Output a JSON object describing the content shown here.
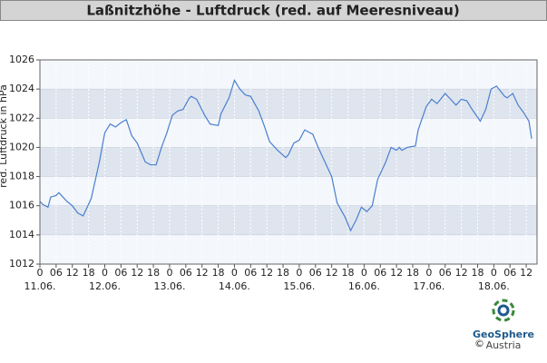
{
  "chart_data": {
    "type": "line",
    "title": "Laßnitzhöhe - Luftdruck (red. auf Meeresniveau)",
    "y_label": "red. Luftdruck in hPa",
    "x": [
      0,
      1,
      3,
      4,
      6,
      7,
      9,
      10,
      12,
      14,
      16,
      19,
      22,
      24,
      26,
      28,
      30,
      32,
      34,
      36,
      39,
      41,
      43,
      45,
      47,
      49,
      51,
      53,
      55,
      56,
      58,
      61,
      63,
      66,
      67,
      70,
      72,
      74,
      76,
      78,
      81,
      83,
      85,
      88,
      91,
      92,
      94,
      96,
      98,
      100,
      101,
      103,
      106,
      108,
      110,
      113,
      115,
      117,
      119,
      121,
      123,
      125,
      128,
      130,
      132,
      133,
      134,
      136,
      139,
      140,
      143,
      145,
      147,
      150,
      152,
      154,
      156,
      158,
      160,
      163,
      165,
      167,
      169,
      172,
      173,
      175,
      177,
      179,
      181,
      182
    ],
    "values": [
      1016.3,
      1016.1,
      1015.9,
      1016.6,
      1016.7,
      1016.9,
      1016.5,
      1016.3,
      1016.0,
      1015.5,
      1015.3,
      1016.5,
      1019.0,
      1021.0,
      1021.6,
      1021.4,
      1021.7,
      1021.9,
      1020.8,
      1020.3,
      1019.0,
      1018.8,
      1018.8,
      1020.0,
      1021.0,
      1022.2,
      1022.5,
      1022.6,
      1023.3,
      1023.5,
      1023.3,
      1022.2,
      1021.6,
      1021.5,
      1022.3,
      1023.4,
      1024.6,
      1024.0,
      1023.6,
      1023.5,
      1022.5,
      1021.5,
      1020.4,
      1019.8,
      1019.3,
      1019.5,
      1020.3,
      1020.5,
      1021.2,
      1021.0,
      1020.9,
      1020.0,
      1018.8,
      1018.0,
      1016.2,
      1015.2,
      1014.3,
      1015.0,
      1015.9,
      1015.6,
      1016.0,
      1017.8,
      1019.0,
      1020.0,
      1019.8,
      1020.0,
      1019.8,
      1020.0,
      1020.1,
      1021.2,
      1022.8,
      1023.3,
      1023.0,
      1023.7,
      1023.3,
      1022.9,
      1023.3,
      1023.2,
      1022.6,
      1021.8,
      1022.6,
      1024.0,
      1024.2,
      1023.5,
      1023.4,
      1023.7,
      1022.9,
      1022.4,
      1021.8,
      1020.6
    ],
    "color": "#4a7fd0",
    "xlim": [
      0,
      184
    ],
    "ylim": [
      1012,
      1026
    ],
    "yticks": [
      1012,
      1014,
      1016,
      1018,
      1020,
      1022,
      1024,
      1026
    ],
    "xticks": [
      0,
      {
        "value": 6,
        "label": "06"
      },
      12,
      18,
      {
        "value": 24,
        "label": "0"
      },
      {
        "value": 30,
        "label": "06"
      },
      {
        "value": 36,
        "label": "12"
      },
      {
        "value": 42,
        "label": "18"
      },
      {
        "value": 48,
        "label": "0"
      },
      {
        "value": 54,
        "label": "06"
      },
      {
        "value": 60,
        "label": "12"
      },
      {
        "value": 66,
        "label": "18"
      },
      {
        "value": 72,
        "label": "0"
      },
      {
        "value": 78,
        "label": "06"
      },
      {
        "value": 84,
        "label": "12"
      },
      {
        "value": 90,
        "label": "18"
      },
      {
        "value": 96,
        "label": "0"
      },
      {
        "value": 102,
        "label": "06"
      },
      {
        "value": 108,
        "label": "12"
      },
      {
        "value": 114,
        "label": "18"
      },
      {
        "value": 120,
        "label": "0"
      },
      {
        "value": 126,
        "label": "06"
      },
      {
        "value": 132,
        "label": "12"
      },
      {
        "value": 138,
        "label": "18"
      },
      {
        "value": 144,
        "label": "0"
      },
      {
        "value": 150,
        "label": "06"
      },
      {
        "value": 156,
        "label": "12"
      },
      {
        "value": 162,
        "label": "18"
      },
      {
        "value": 168,
        "label": "0"
      },
      {
        "value": 174,
        "label": "06"
      },
      {
        "value": 180,
        "label": "12"
      }
    ],
    "day_labels": [
      {
        "value": 0,
        "label": "11.06."
      },
      {
        "value": 24,
        "label": "12.06."
      },
      {
        "value": 48,
        "label": "13.06."
      },
      {
        "value": 72,
        "label": "14.06."
      },
      {
        "value": 96,
        "label": "15.06."
      },
      {
        "value": 120,
        "label": "16.06."
      },
      {
        "value": 144,
        "label": "17.06."
      },
      {
        "value": 168,
        "label": "18.06."
      }
    ],
    "grid": true
  },
  "logo": {
    "copyright": "©",
    "name": "GeoSphere",
    "sub": "Austria"
  }
}
